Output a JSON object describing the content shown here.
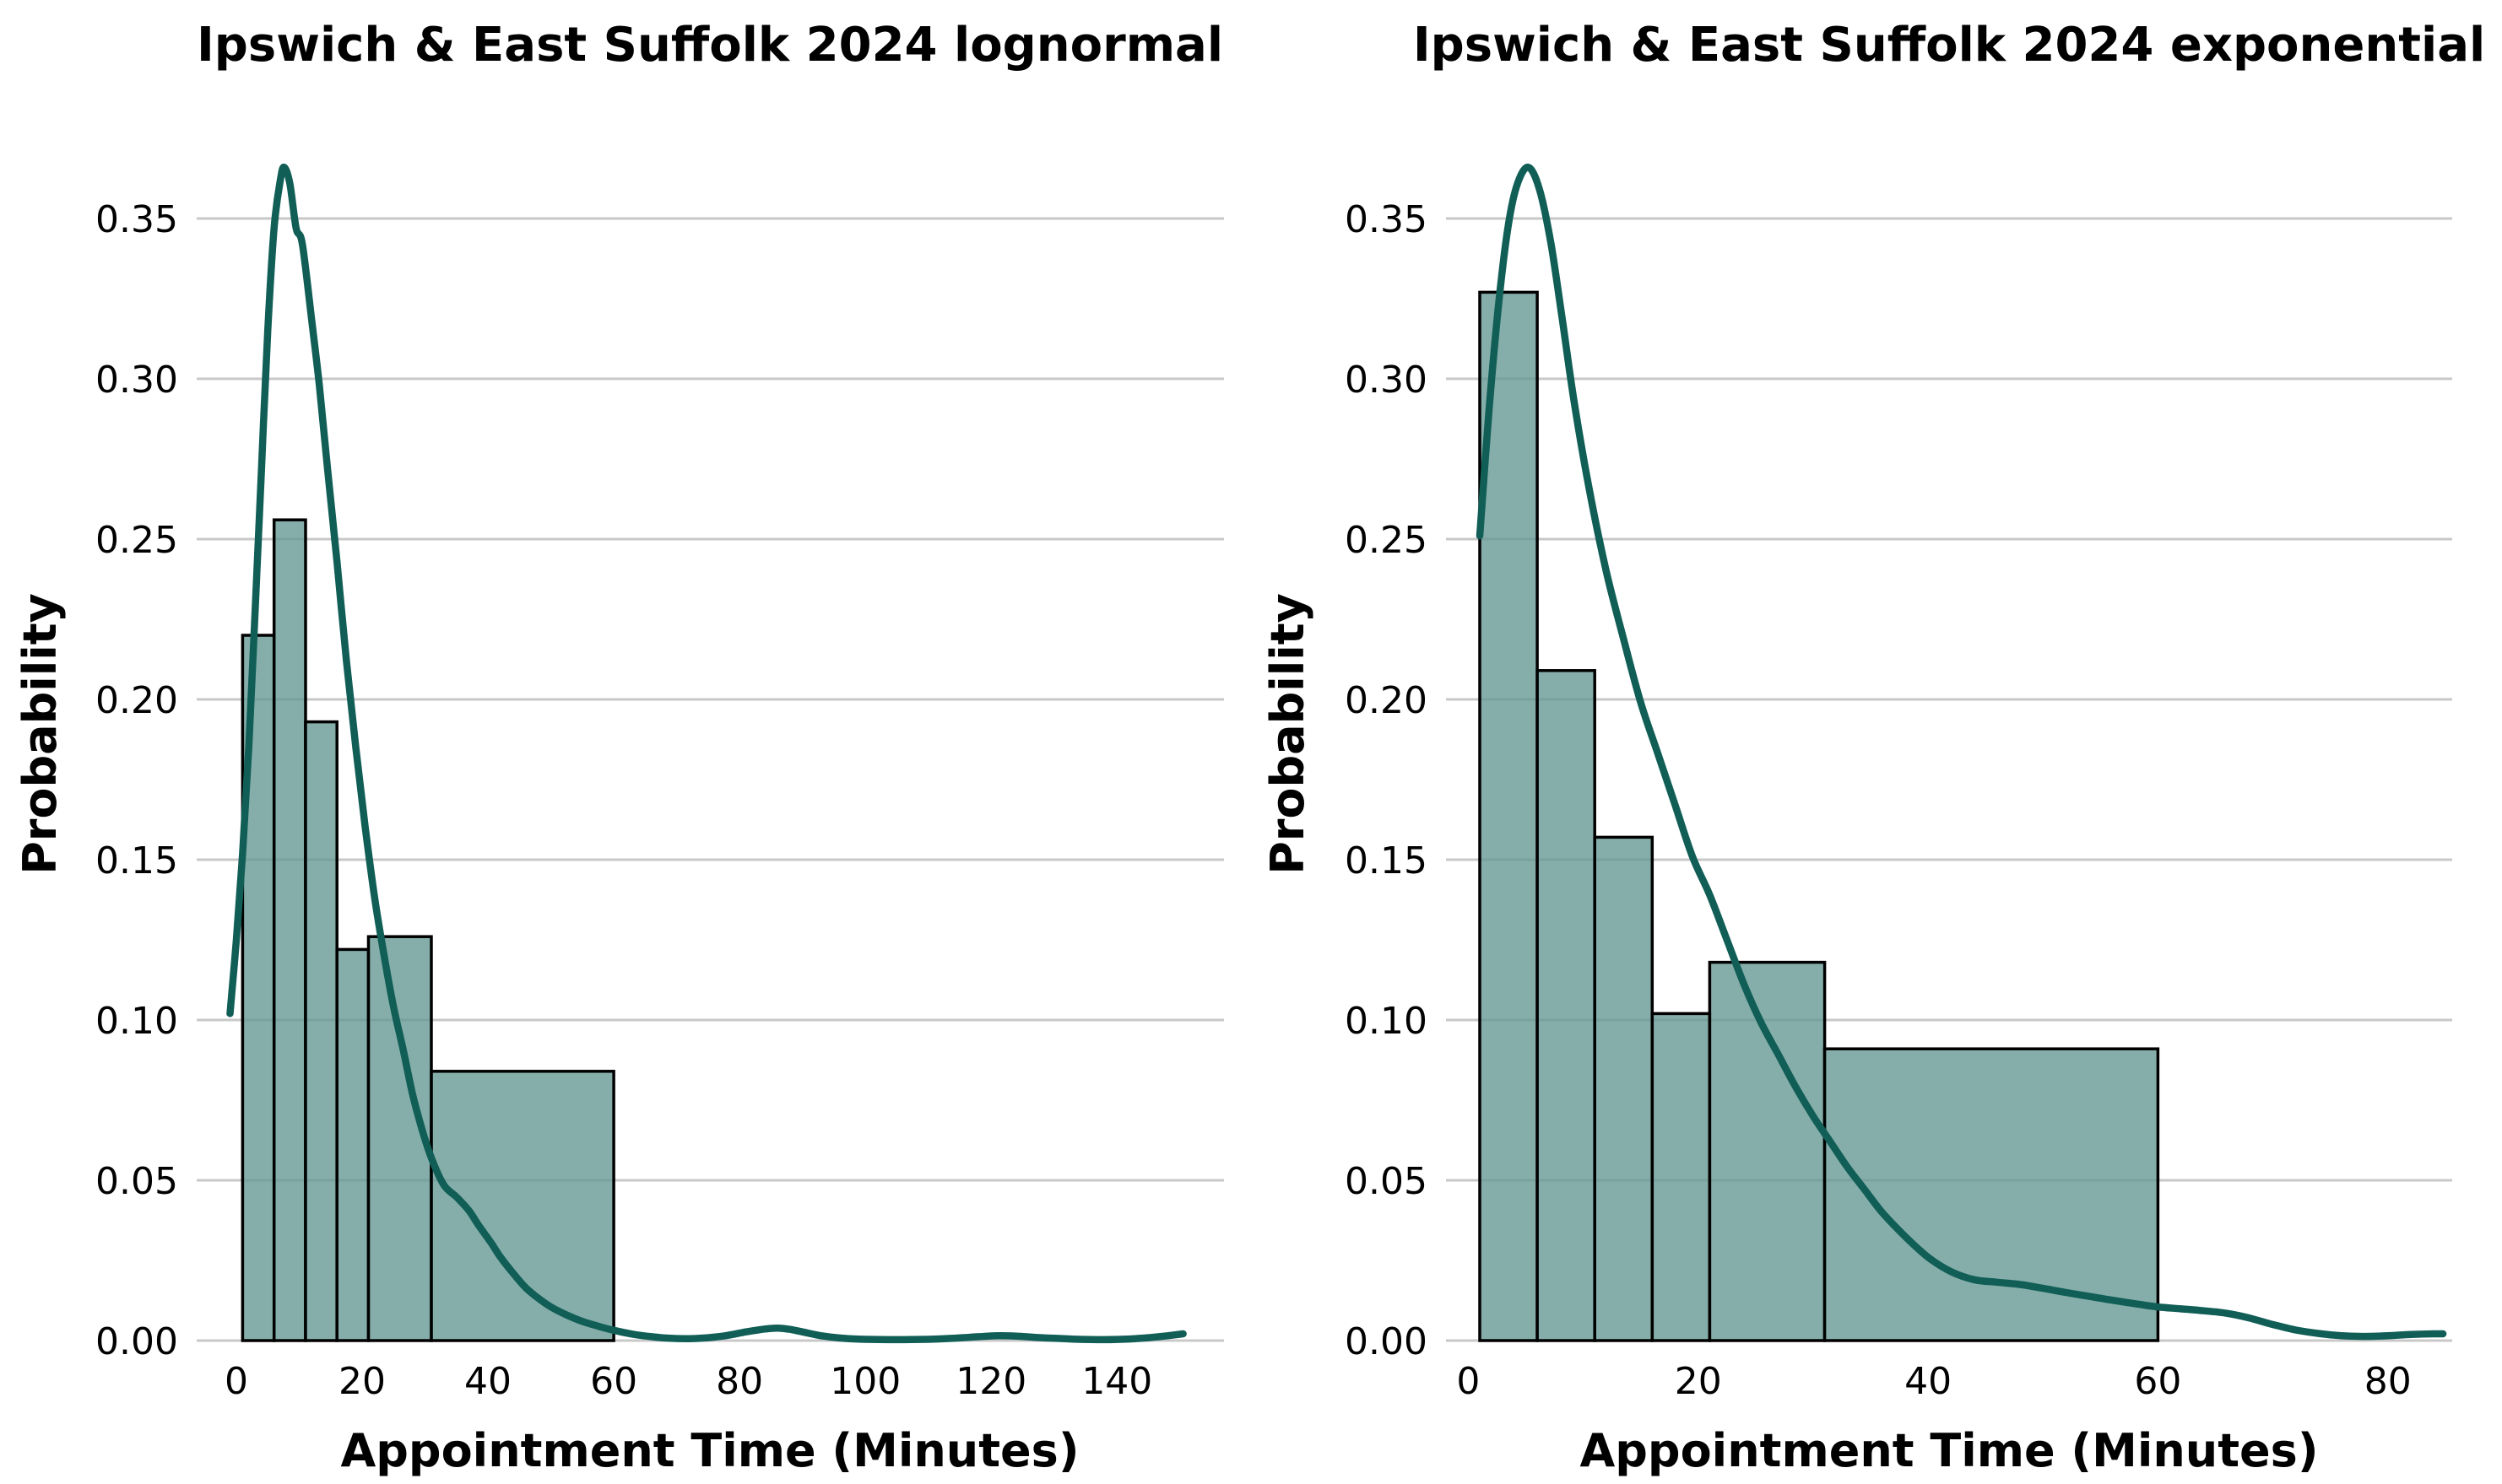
{
  "figure": {
    "background": "#ffffff",
    "grid": "horizontal",
    "legend": "none"
  },
  "colors": {
    "bar_fill": "#639792",
    "bar_fill_opacity": 0.78,
    "bar_edge": "#000000",
    "kde_curve": "#115E57",
    "gridline": "#C8C8C8",
    "text": "#000000"
  },
  "chart_data": [
    {
      "type": "histogram+kde",
      "title": "Ipswich & East Suffolk 2024 lognormal",
      "xlabel": "Appointment Time (Minutes)",
      "ylabel": "Probability",
      "bin_edges": [
        1,
        6,
        11,
        16,
        21,
        31,
        60
      ],
      "bar_heights": [
        0.22,
        0.256,
        0.193,
        0.122,
        0.126,
        0.084
      ],
      "xtick_values": [
        0,
        20,
        40,
        60,
        80,
        100,
        120,
        140
      ],
      "xtick_labels": [
        "0",
        "20",
        "40",
        "60",
        "80",
        "100",
        "120",
        "140"
      ],
      "ytick_values": [
        0.0,
        0.05,
        0.1,
        0.15,
        0.2,
        0.25,
        0.3,
        0.35
      ],
      "ytick_labels": [
        "0.00",
        "0.05",
        "0.10",
        "0.15",
        "0.20",
        "0.25",
        "0.30",
        "0.35"
      ],
      "xlim": [
        -6.3,
        157.0
      ],
      "ylim": [
        0,
        0.37868
      ],
      "curve": [
        [
          -1,
          0.102
        ],
        [
          0,
          0.125
        ],
        [
          1,
          0.152
        ],
        [
          2,
          0.186
        ],
        [
          3,
          0.228
        ],
        [
          4,
          0.272
        ],
        [
          5,
          0.315
        ],
        [
          6,
          0.347
        ],
        [
          7,
          0.362
        ],
        [
          7.6,
          0.366
        ],
        [
          8.5,
          0.361
        ],
        [
          9.5,
          0.347
        ],
        [
          10.5,
          0.342
        ],
        [
          12,
          0.318
        ],
        [
          13.2,
          0.298
        ],
        [
          14.5,
          0.272
        ],
        [
          16,
          0.243
        ],
        [
          17.5,
          0.212
        ],
        [
          19,
          0.185
        ],
        [
          20.5,
          0.16
        ],
        [
          22,
          0.138
        ],
        [
          23.5,
          0.12
        ],
        [
          25,
          0.104
        ],
        [
          26.5,
          0.091
        ],
        [
          28,
          0.077
        ],
        [
          29.5,
          0.066
        ],
        [
          31,
          0.057
        ],
        [
          33,
          0.0485
        ],
        [
          35,
          0.0448
        ],
        [
          37,
          0.0405
        ],
        [
          38.5,
          0.036
        ],
        [
          40.5,
          0.0305
        ],
        [
          42,
          0.026
        ],
        [
          44,
          0.021
        ],
        [
          46,
          0.0165
        ],
        [
          48,
          0.0132
        ],
        [
          50,
          0.0105
        ],
        [
          52.5,
          0.008
        ],
        [
          55,
          0.006
        ],
        [
          57.5,
          0.0045
        ],
        [
          60,
          0.0032
        ],
        [
          63,
          0.002
        ],
        [
          66,
          0.0012
        ],
        [
          69,
          0.0007
        ],
        [
          72,
          0.0006
        ],
        [
          75,
          0.0009
        ],
        [
          78,
          0.0016
        ],
        [
          81,
          0.0027
        ],
        [
          84,
          0.0036
        ],
        [
          86,
          0.0039
        ],
        [
          88,
          0.0035
        ],
        [
          90,
          0.0027
        ],
        [
          93,
          0.0015
        ],
        [
          96,
          0.0008
        ],
        [
          100,
          0.0004
        ],
        [
          105,
          0.0003
        ],
        [
          110,
          0.0004
        ],
        [
          114,
          0.0007
        ],
        [
          118,
          0.0012
        ],
        [
          121,
          0.0015
        ],
        [
          124,
          0.0014
        ],
        [
          127,
          0.001
        ],
        [
          130,
          0.0007
        ],
        [
          134,
          0.0004
        ],
        [
          138,
          0.0003
        ],
        [
          142,
          0.0005
        ],
        [
          145,
          0.0009
        ],
        [
          148,
          0.0015
        ],
        [
          150.5,
          0.0021
        ]
      ]
    },
    {
      "type": "histogram+kde",
      "title": "Ipswich & East Suffolk 2024 exponential",
      "xlabel": "Appointment Time (Minutes)",
      "ylabel": "Probability",
      "bin_edges": [
        1,
        6,
        11,
        16,
        21,
        31,
        60
      ],
      "bar_heights": [
        0.327,
        0.209,
        0.157,
        0.102,
        0.118,
        0.091
      ],
      "xtick_values": [
        0,
        20,
        40,
        60,
        80
      ],
      "xtick_labels": [
        "0",
        "20",
        "40",
        "60",
        "80"
      ],
      "ytick_values": [
        0.0,
        0.05,
        0.1,
        0.15,
        0.2,
        0.25,
        0.3,
        0.35
      ],
      "ytick_labels": [
        "0.00",
        "0.05",
        "0.10",
        "0.15",
        "0.20",
        "0.25",
        "0.30",
        "0.35"
      ],
      "xlim": [
        -1.94,
        85.6
      ],
      "ylim": [
        0,
        0.37868
      ],
      "curve": [
        [
          1,
          0.251
        ],
        [
          1.8,
          0.29
        ],
        [
          2.6,
          0.322
        ],
        [
          3.4,
          0.346
        ],
        [
          4.2,
          0.36
        ],
        [
          5.2,
          0.366
        ],
        [
          6.2,
          0.359
        ],
        [
          7.2,
          0.342
        ],
        [
          8.2,
          0.318
        ],
        [
          9.2,
          0.293
        ],
        [
          10.5,
          0.266
        ],
        [
          12,
          0.24
        ],
        [
          13.5,
          0.219
        ],
        [
          15,
          0.199
        ],
        [
          16.5,
          0.183
        ],
        [
          18,
          0.167
        ],
        [
          19.5,
          0.151
        ],
        [
          21,
          0.139
        ],
        [
          22.5,
          0.125
        ],
        [
          24,
          0.111
        ],
        [
          25.5,
          0.099
        ],
        [
          27,
          0.089
        ],
        [
          28.5,
          0.079
        ],
        [
          30,
          0.07
        ],
        [
          31.5,
          0.062
        ],
        [
          33,
          0.054
        ],
        [
          34.5,
          0.047
        ],
        [
          36,
          0.04
        ],
        [
          38,
          0.0325
        ],
        [
          40,
          0.026
        ],
        [
          42,
          0.0215
        ],
        [
          44,
          0.019
        ],
        [
          46,
          0.0182
        ],
        [
          48,
          0.0175
        ],
        [
          50,
          0.0163
        ],
        [
          52,
          0.015
        ],
        [
          54,
          0.0138
        ],
        [
          56,
          0.0126
        ],
        [
          58,
          0.0115
        ],
        [
          60,
          0.0105
        ],
        [
          62,
          0.0099
        ],
        [
          64,
          0.0093
        ],
        [
          66,
          0.0085
        ],
        [
          68,
          0.007
        ],
        [
          70,
          0.005
        ],
        [
          72,
          0.0033
        ],
        [
          74,
          0.0022
        ],
        [
          76,
          0.0015
        ],
        [
          78,
          0.0013
        ],
        [
          80,
          0.0015
        ],
        [
          82,
          0.0019
        ],
        [
          84,
          0.0021
        ],
        [
          84.8,
          0.0021
        ]
      ]
    }
  ]
}
